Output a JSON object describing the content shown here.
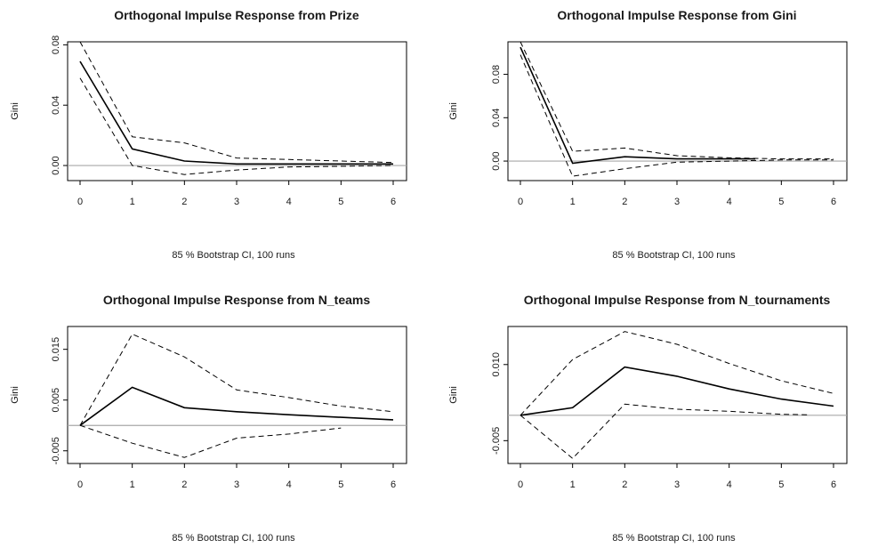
{
  "chart_data": [
    {
      "type": "line",
      "title": "Orthogonal Impulse Response from Prize",
      "ylabel": "Gini",
      "xlabel": "",
      "note": "85 % Bootstrap CI,  100 runs",
      "xlim": [
        0,
        6
      ],
      "ylim": [
        -0.01,
        0.082
      ],
      "xticks": [
        "0",
        "1",
        "2",
        "3",
        "4",
        "5",
        "6"
      ],
      "yticks": [
        {
          "value": 0.0,
          "label": "0.00"
        },
        {
          "value": 0.04,
          "label": "0.04"
        },
        {
          "value": 0.08,
          "label": "0.08"
        }
      ],
      "zero_line": true,
      "series": [
        {
          "role": "response",
          "x": [
            0,
            1,
            2,
            3,
            4,
            5,
            6
          ],
          "values": [
            0.069,
            0.011,
            0.003,
            0.001,
            0.001,
            0.001,
            0.001
          ]
        },
        {
          "role": "upper",
          "x": [
            0,
            1,
            2,
            3,
            4,
            5,
            6
          ],
          "values": [
            0.082,
            0.019,
            0.015,
            0.005,
            0.004,
            0.003,
            0.002
          ]
        },
        {
          "role": "lower",
          "x": [
            0,
            1,
            2,
            3,
            4,
            5,
            6
          ],
          "values": [
            0.058,
            0.0,
            -0.006,
            -0.003,
            -0.001,
            -0.0005,
            0.0
          ]
        }
      ]
    },
    {
      "type": "line",
      "title": "Orthogonal Impulse Response from Gini",
      "ylabel": "Gini",
      "xlabel": "",
      "note": "85 % Bootstrap CI,  100 runs",
      "xlim": [
        0,
        6
      ],
      "ylim": [
        -0.018,
        0.11
      ],
      "xticks": [
        "0",
        "1",
        "2",
        "3",
        "4",
        "5",
        "6"
      ],
      "yticks": [
        {
          "value": 0.0,
          "label": "0.00"
        },
        {
          "value": 0.04,
          "label": "0.04"
        },
        {
          "value": 0.08,
          "label": "0.08"
        }
      ],
      "zero_line": true,
      "series": [
        {
          "role": "response",
          "x": [
            0,
            1,
            2,
            3,
            4,
            4.5
          ],
          "values": [
            0.105,
            -0.002,
            0.004,
            0.002,
            0.002,
            0.002
          ]
        },
        {
          "role": "upper",
          "x": [
            0,
            1,
            2,
            3,
            4,
            5,
            6
          ],
          "values": [
            0.11,
            0.009,
            0.012,
            0.005,
            0.003,
            0.002,
            0.002
          ]
        },
        {
          "role": "lower",
          "x": [
            0,
            1,
            2,
            3,
            4,
            5,
            6
          ],
          "values": [
            0.098,
            -0.014,
            -0.007,
            -0.001,
            0.0,
            0.001,
            0.001
          ]
        }
      ]
    },
    {
      "type": "line",
      "title": "Orthogonal Impulse Response from N_teams",
      "ylabel": "Gini",
      "xlabel": "",
      "note": "85 % Bootstrap CI,  100 runs",
      "xlim": [
        0,
        6
      ],
      "ylim": [
        -0.0075,
        0.0195
      ],
      "xticks": [
        "0",
        "1",
        "2",
        "3",
        "4",
        "5",
        "6"
      ],
      "yticks": [
        {
          "value": -0.005,
          "label": "-0.005"
        },
        {
          "value": 0.005,
          "label": "0.005"
        },
        {
          "value": 0.015,
          "label": "0.015"
        }
      ],
      "zero_line": true,
      "series": [
        {
          "role": "response",
          "x": [
            0,
            1,
            2,
            3,
            4,
            5,
            6
          ],
          "values": [
            0.0,
            0.0075,
            0.0035,
            0.0027,
            0.0021,
            0.0016,
            0.0011
          ]
        },
        {
          "role": "upper",
          "x": [
            0,
            1,
            2,
            3,
            4,
            5,
            6
          ],
          "values": [
            0.0,
            0.018,
            0.0135,
            0.007,
            0.0055,
            0.0038,
            0.0027
          ]
        },
        {
          "role": "lower",
          "x": [
            0,
            1,
            2,
            3,
            4,
            5
          ],
          "values": [
            0.0,
            -0.0035,
            -0.0063,
            -0.0025,
            -0.0017,
            -0.0005
          ]
        }
      ]
    },
    {
      "type": "line",
      "title": "Orthogonal Impulse Response from N_tournaments",
      "ylabel": "Gini",
      "xlabel": "",
      "note": "85 % Bootstrap CI,  100 runs",
      "xlim": [
        0,
        6
      ],
      "ylim": [
        -0.0095,
        0.0175
      ],
      "xticks": [
        "0",
        "1",
        "2",
        "3",
        "4",
        "5",
        "6"
      ],
      "yticks": [
        {
          "value": -0.005,
          "label": "-0.005"
        },
        {
          "value": 0.01,
          "label": "0.010"
        }
      ],
      "zero_line": true,
      "series": [
        {
          "role": "response",
          "x": [
            0,
            1,
            2,
            3,
            4,
            5,
            6
          ],
          "values": [
            0.0,
            0.0015,
            0.0095,
            0.0077,
            0.0052,
            0.0032,
            0.0018
          ]
        },
        {
          "role": "upper",
          "x": [
            0,
            1,
            2,
            3,
            4,
            5,
            6
          ],
          "values": [
            0.0,
            0.011,
            0.0165,
            0.014,
            0.0102,
            0.0068,
            0.0043
          ]
        },
        {
          "role": "lower",
          "x": [
            0,
            1,
            2,
            3,
            4,
            5,
            5.5
          ],
          "values": [
            0.0,
            -0.0085,
            0.0022,
            0.0012,
            0.0008,
            0.0002,
            0.0001
          ]
        }
      ]
    }
  ]
}
